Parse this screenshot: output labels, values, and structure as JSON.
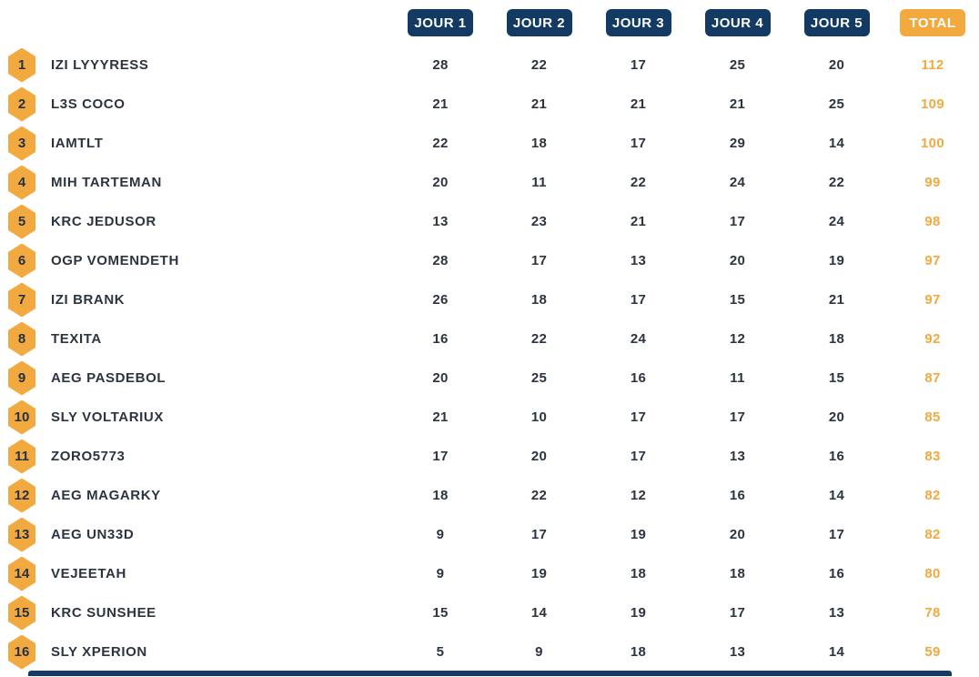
{
  "leaderboard": {
    "columns": [
      {
        "label": "JOUR 1"
      },
      {
        "label": "JOUR 2"
      },
      {
        "label": "JOUR 3"
      },
      {
        "label": "JOUR 4"
      },
      {
        "label": "JOUR 5"
      },
      {
        "label": "TOTAL"
      }
    ],
    "rows": [
      {
        "rank": "1",
        "name": "IZI LYYYRESS",
        "scores": [
          "28",
          "22",
          "17",
          "25",
          "20"
        ],
        "total": "112"
      },
      {
        "rank": "2",
        "name": "L3S COCO",
        "scores": [
          "21",
          "21",
          "21",
          "21",
          "25"
        ],
        "total": "109"
      },
      {
        "rank": "3",
        "name": "IAMTLT",
        "scores": [
          "22",
          "18",
          "17",
          "29",
          "14"
        ],
        "total": "100"
      },
      {
        "rank": "4",
        "name": "MIH TARTEMAN",
        "scores": [
          "20",
          "11",
          "22",
          "24",
          "22"
        ],
        "total": "99"
      },
      {
        "rank": "5",
        "name": "KRC JEDUSOR",
        "scores": [
          "13",
          "23",
          "21",
          "17",
          "24"
        ],
        "total": "98"
      },
      {
        "rank": "6",
        "name": "OGP VOMENDETH",
        "scores": [
          "28",
          "17",
          "13",
          "20",
          "19"
        ],
        "total": "97"
      },
      {
        "rank": "7",
        "name": "IZI BRANK",
        "scores": [
          "26",
          "18",
          "17",
          "15",
          "21"
        ],
        "total": "97"
      },
      {
        "rank": "8",
        "name": "TEXITA",
        "scores": [
          "16",
          "22",
          "24",
          "12",
          "18"
        ],
        "total": "92"
      },
      {
        "rank": "9",
        "name": "AEG PASDEBOL",
        "scores": [
          "20",
          "25",
          "16",
          "11",
          "15"
        ],
        "total": "87"
      },
      {
        "rank": "10",
        "name": "SLY VOLTARIUX",
        "scores": [
          "21",
          "10",
          "17",
          "17",
          "20"
        ],
        "total": "85"
      },
      {
        "rank": "11",
        "name": "ZORO5773",
        "scores": [
          "17",
          "20",
          "17",
          "13",
          "16"
        ],
        "total": "83"
      },
      {
        "rank": "12",
        "name": "AEG MAGARKY",
        "scores": [
          "18",
          "22",
          "12",
          "16",
          "14"
        ],
        "total": "82"
      },
      {
        "rank": "13",
        "name": "AEG UN33D",
        "scores": [
          "9",
          "17",
          "19",
          "20",
          "17"
        ],
        "total": "82"
      },
      {
        "rank": "14",
        "name": "VEJEETAH",
        "scores": [
          "9",
          "19",
          "18",
          "18",
          "16"
        ],
        "total": "80"
      },
      {
        "rank": "15",
        "name": "KRC SUNSHEE",
        "scores": [
          "15",
          "14",
          "19",
          "17",
          "13"
        ],
        "total": "78"
      },
      {
        "rank": "16",
        "name": "SLY XPERION",
        "scores": [
          "5",
          "9",
          "18",
          "13",
          "14"
        ],
        "total": "59"
      }
    ]
  },
  "colors": {
    "navy": "#123a63",
    "orange": "#f2a93f",
    "text": "#2b3440"
  }
}
